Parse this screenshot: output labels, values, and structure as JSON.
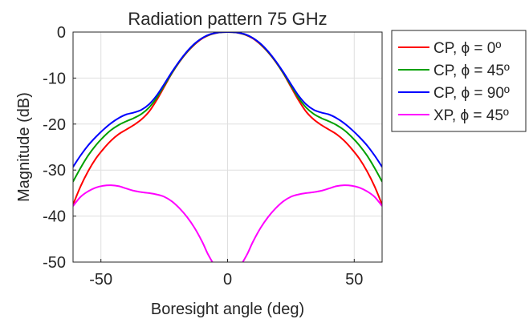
{
  "chart_data": {
    "type": "line",
    "title": "Radiation pattern 75 GHz",
    "xlabel": "Boresight angle (deg)",
    "ylabel": "Magnitude (dB)",
    "xlim": [
      -61,
      61
    ],
    "ylim": [
      -50,
      0
    ],
    "xticks": [
      -50,
      0,
      50
    ],
    "xtick_labels": [
      "-50",
      "0",
      "50"
    ],
    "yticks": [
      0,
      -10,
      -20,
      -30,
      -40,
      -50
    ],
    "ytick_labels": [
      "0",
      "-10",
      "-20",
      "-30",
      "-40",
      "-50"
    ],
    "grid": true,
    "legend_position": "outside-right",
    "series": [
      {
        "name": "CP, ϕ = 0º",
        "color": "#ff0000",
        "x": [
          -61,
          -58,
          -55,
          -52,
          -49,
          -46,
          -43,
          -40,
          -37,
          -34,
          -31,
          -28,
          -25,
          -22,
          -19,
          -16,
          -13,
          -10,
          -7,
          -4,
          -2,
          0,
          2,
          4,
          7,
          10,
          13,
          16,
          19,
          22,
          25,
          28,
          31,
          34,
          37,
          40,
          43,
          46,
          49,
          52,
          55,
          58,
          61
        ],
        "y": [
          -37.5,
          -33.5,
          -30.2,
          -27.5,
          -25.4,
          -23.6,
          -22.2,
          -21.2,
          -20.2,
          -19.0,
          -17.3,
          -14.8,
          -11.9,
          -9.0,
          -6.5,
          -4.4,
          -2.7,
          -1.4,
          -0.6,
          -0.15,
          -0.03,
          0,
          -0.03,
          -0.15,
          -0.6,
          -1.4,
          -2.7,
          -4.4,
          -6.5,
          -9.0,
          -11.9,
          -14.8,
          -17.3,
          -19.0,
          -20.2,
          -21.2,
          -22.2,
          -23.6,
          -25.4,
          -27.5,
          -30.2,
          -33.5,
          -37.5
        ]
      },
      {
        "name": "CP, ϕ = 45º",
        "color": "#00a000",
        "x": [
          -61,
          -58,
          -55,
          -52,
          -49,
          -46,
          -43,
          -40,
          -37,
          -34,
          -31,
          -28,
          -25,
          -22,
          -19,
          -16,
          -13,
          -10,
          -7,
          -4,
          -2,
          0,
          2,
          4,
          7,
          10,
          13,
          16,
          19,
          22,
          25,
          28,
          31,
          34,
          37,
          40,
          43,
          46,
          49,
          52,
          55,
          58,
          61
        ],
        "y": [
          -32.5,
          -29.5,
          -26.8,
          -24.6,
          -22.8,
          -21.3,
          -20.2,
          -19.4,
          -18.7,
          -17.8,
          -16.4,
          -14.3,
          -11.6,
          -8.9,
          -6.4,
          -4.3,
          -2.6,
          -1.3,
          -0.55,
          -0.13,
          -0.03,
          0,
          -0.03,
          -0.13,
          -0.55,
          -1.3,
          -2.6,
          -4.3,
          -6.4,
          -8.9,
          -11.6,
          -14.3,
          -16.4,
          -17.8,
          -18.7,
          -19.4,
          -20.2,
          -21.3,
          -22.8,
          -24.6,
          -26.8,
          -29.5,
          -32.5
        ]
      },
      {
        "name": "CP, ϕ = 90º",
        "color": "#0000ff",
        "x": [
          -61,
          -58,
          -55,
          -52,
          -49,
          -46,
          -43,
          -40,
          -37,
          -34,
          -31,
          -28,
          -25,
          -22,
          -19,
          -16,
          -13,
          -10,
          -7,
          -4,
          -2,
          0,
          2,
          4,
          7,
          10,
          13,
          16,
          19,
          22,
          25,
          28,
          31,
          34,
          37,
          40,
          43,
          46,
          49,
          52,
          55,
          58,
          61
        ],
        "y": [
          -29.3,
          -26.8,
          -24.6,
          -22.8,
          -21.2,
          -19.8,
          -18.7,
          -17.9,
          -17.5,
          -16.9,
          -15.7,
          -13.8,
          -11.3,
          -8.7,
          -6.3,
          -4.2,
          -2.5,
          -1.3,
          -0.5,
          -0.12,
          -0.03,
          0,
          -0.03,
          -0.12,
          -0.5,
          -1.3,
          -2.5,
          -4.2,
          -6.3,
          -8.7,
          -11.3,
          -13.8,
          -15.7,
          -16.9,
          -17.5,
          -17.9,
          -18.7,
          -19.8,
          -21.2,
          -22.8,
          -24.6,
          -26.8,
          -29.3
        ]
      },
      {
        "name": "XP, ϕ = 45º",
        "color": "#ff00ff",
        "segments": [
          {
            "x": [
              -61,
              -58,
              -55,
              -52,
              -49,
              -46,
              -43,
              -40,
              -37,
              -34,
              -31,
              -28,
              -25,
              -22,
              -19,
              -16,
              -13,
              -10,
              -8,
              -6
            ],
            "y": [
              -37.8,
              -35.8,
              -34.6,
              -33.8,
              -33.4,
              -33.3,
              -33.5,
              -34.0,
              -34.5,
              -34.8,
              -35.0,
              -35.3,
              -35.8,
              -36.8,
              -38.3,
              -40.2,
              -42.6,
              -45.6,
              -48.0,
              -50.0
            ]
          },
          {
            "x": [
              6,
              8,
              10,
              13,
              16,
              19,
              22,
              25,
              28,
              31,
              34,
              37,
              40,
              43,
              46,
              49,
              52,
              55,
              58,
              61
            ],
            "y": [
              -50.0,
              -48.0,
              -45.6,
              -42.6,
              -40.2,
              -38.3,
              -36.8,
              -35.8,
              -35.3,
              -35.0,
              -34.8,
              -34.5,
              -34.0,
              -33.5,
              -33.3,
              -33.4,
              -33.8,
              -34.6,
              -35.8,
              -37.8
            ]
          }
        ]
      }
    ]
  }
}
